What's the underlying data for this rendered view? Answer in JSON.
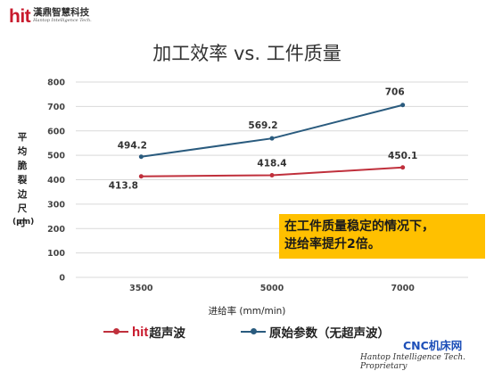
{
  "logo": {
    "mark": "hit",
    "cn": "漢鼎智慧科技",
    "en": "Hantop Intelligence Tech."
  },
  "chart_data": {
    "type": "line",
    "title": "加工效率 vs. 工件质量",
    "categories": [
      "3500",
      "5000",
      "7000"
    ],
    "xlabel": "进给率 (mm/min)",
    "ylabel": "平均脆裂边尺寸",
    "ylabel_unit": "(μm)",
    "ylim": [
      0,
      800
    ],
    "yticks": [
      "0",
      "100",
      "200",
      "300",
      "400",
      "500",
      "600",
      "700",
      "800"
    ],
    "grid": true,
    "legend_position": "bottom",
    "series": [
      {
        "name": "超声波",
        "legend_prefix": "hit",
        "color": "#c0303c",
        "values": [
          413.8,
          418.4,
          450.1
        ],
        "labels": [
          "413.8",
          "418.4",
          "450.1"
        ]
      },
      {
        "name": "原始参数（无超声波）",
        "color": "#2a5b7e",
        "values": [
          494.2,
          569.2,
          706
        ],
        "labels": [
          "494.2",
          "569.2",
          "706"
        ]
      }
    ],
    "annotation": [
      "在工件质量稳定的情况下，",
      "进给率提升2倍。"
    ]
  },
  "watermark": {
    "site": "CNC机床网",
    "proprietary": "Hantop Intelligence Tech. Proprietary"
  }
}
